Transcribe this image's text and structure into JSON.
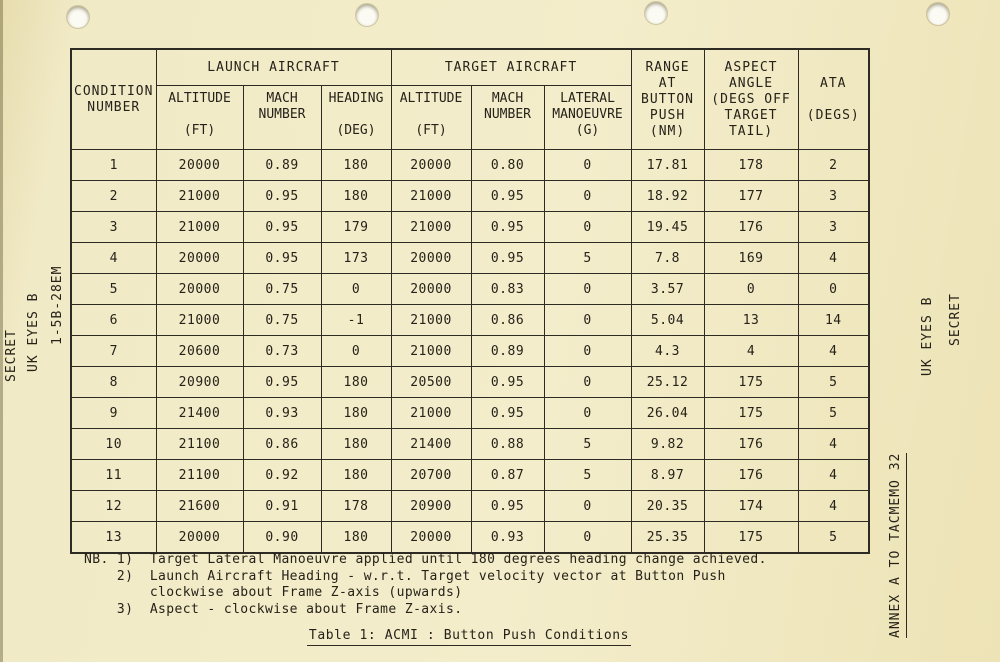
{
  "marginalia": {
    "left_secret": "SECRET",
    "left_uk_eyes": "UK EYES B",
    "left_ref": "1-5B-28EM",
    "right_secret": "SECRET",
    "right_uk_eyes": "UK EYES B",
    "right_annex": "ANNEX A TO TACMEMO 32"
  },
  "table": {
    "headers": {
      "condition": "CONDITION\nNUMBER",
      "launch_group": "LAUNCH AIRCRAFT",
      "target_group": "TARGET AIRCRAFT",
      "range": "RANGE\nAT\nBUTTON\nPUSH\n(NM)",
      "aspect": "ASPECT\nANGLE\n(DEGS OFF\nTARGET\nTAIL)",
      "ata": "ATA\n\n(DEGS)",
      "sub": [
        "ALTITUDE\n\n(FT)",
        "MACH\nNUMBER",
        "HEADING\n\n(DEG)",
        "ALTITUDE\n\n(FT)",
        "MACH\nNUMBER",
        "LATERAL\nMANOEUVRE\n(G)"
      ]
    },
    "rows": [
      [
        "1",
        "20000",
        "0.89",
        "180",
        "20000",
        "0.80",
        "0",
        "17.81",
        "178",
        "2"
      ],
      [
        "2",
        "21000",
        "0.95",
        "180",
        "21000",
        "0.95",
        "0",
        "18.92",
        "177",
        "3"
      ],
      [
        "3",
        "21000",
        "0.95",
        "179",
        "21000",
        "0.95",
        "0",
        "19.45",
        "176",
        "3"
      ],
      [
        "4",
        "20000",
        "0.95",
        "173",
        "20000",
        "0.95",
        "5",
        "7.8",
        "169",
        "4"
      ],
      [
        "5",
        "20000",
        "0.75",
        "0",
        "20000",
        "0.83",
        "0",
        "3.57",
        "0",
        "0"
      ],
      [
        "6",
        "21000",
        "0.75",
        "-1",
        "21000",
        "0.86",
        "0",
        "5.04",
        "13",
        "14"
      ],
      [
        "7",
        "20600",
        "0.73",
        "0",
        "21000",
        "0.89",
        "0",
        "4.3",
        "4",
        "4"
      ],
      [
        "8",
        "20900",
        "0.95",
        "180",
        "20500",
        "0.95",
        "0",
        "25.12",
        "175",
        "5"
      ],
      [
        "9",
        "21400",
        "0.93",
        "180",
        "21000",
        "0.95",
        "0",
        "26.04",
        "175",
        "5"
      ],
      [
        "10",
        "21100",
        "0.86",
        "180",
        "21400",
        "0.88",
        "5",
        "9.82",
        "176",
        "4"
      ],
      [
        "11",
        "21100",
        "0.92",
        "180",
        "20700",
        "0.87",
        "5",
        "8.97",
        "176",
        "4"
      ],
      [
        "12",
        "21600",
        "0.91",
        "178",
        "20900",
        "0.95",
        "0",
        "20.35",
        "174",
        "4"
      ],
      [
        "13",
        "20000",
        "0.90",
        "180",
        "20000",
        "0.93",
        "0",
        "25.35",
        "175",
        "5"
      ]
    ]
  },
  "notes": {
    "lines": [
      "NB. 1)  Target Lateral Manoeuvre applied until 180 degrees heading change achieved.",
      "    2)  Launch Aircraft Heading - w.r.t. Target velocity vector at Button Push",
      "        clockwise about Frame Z-axis (upwards)",
      "    3)  Aspect - clockwise about Frame Z-axis."
    ]
  },
  "caption": "Table 1:  ACMI : Button Push Conditions"
}
